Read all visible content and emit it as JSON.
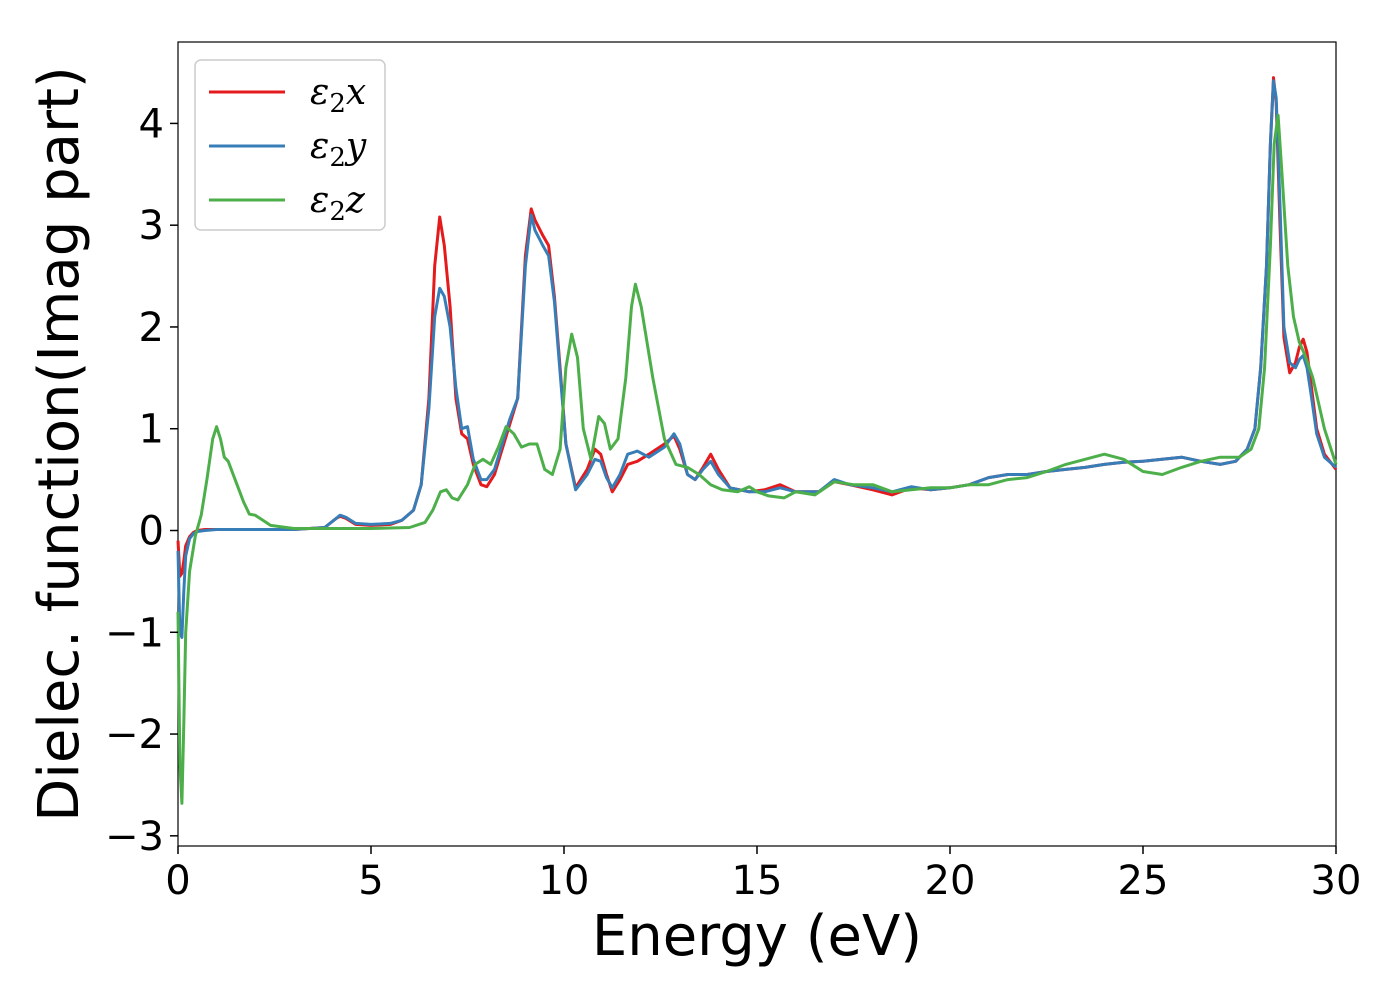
{
  "chart_data": {
    "type": "line",
    "title": "",
    "xlabel": "Energy (eV)",
    "ylabel": "Dielec. function(Imag part)",
    "xlim": [
      0,
      30
    ],
    "ylim": [
      -3.1,
      4.8
    ],
    "xticks": [
      0,
      5,
      10,
      15,
      20,
      25,
      30
    ],
    "xtick_labels": [
      "0",
      "5",
      "10",
      "15",
      "20",
      "25",
      "30"
    ],
    "yticks": [
      -3,
      -2,
      -1,
      0,
      1,
      2,
      3,
      4
    ],
    "ytick_labels": [
      "−3",
      "−2",
      "−1",
      "0",
      "1",
      "2",
      "3",
      "4"
    ],
    "grid": false,
    "legend": {
      "position": "top-left"
    },
    "series": [
      {
        "name": "x",
        "label_base": "ε",
        "label_sub": "2",
        "color": "#e41a1c",
        "x": [
          0,
          0.05,
          0.1,
          0.15,
          0.2,
          0.3,
          0.4,
          0.5,
          0.7,
          1,
          1.5,
          2,
          3,
          3.8,
          4.1,
          4.2,
          4.35,
          4.6,
          5,
          5.5,
          5.8,
          6.1,
          6.3,
          6.5,
          6.65,
          6.78,
          6.9,
          7.05,
          7.2,
          7.35,
          7.5,
          7.65,
          7.85,
          8.0,
          8.2,
          8.4,
          8.6,
          8.8,
          9.0,
          9.15,
          9.25,
          9.45,
          9.6,
          9.75,
          9.9,
          10.05,
          10.3,
          10.6,
          10.8,
          10.95,
          11.1,
          11.25,
          11.45,
          11.65,
          11.9,
          12.2,
          12.6,
          12.85,
          13.0,
          13.2,
          13.4,
          13.6,
          13.8,
          14.0,
          14.3,
          14.8,
          15.2,
          15.6,
          16.0,
          16.6,
          17.0,
          17.4,
          18.0,
          18.5,
          19.0,
          19.5,
          20.0,
          20.5,
          21.0,
          21.5,
          22.0,
          22.5,
          23.0,
          23.5,
          24.0,
          24.5,
          25.0,
          25.5,
          26.0,
          26.5,
          27.0,
          27.4,
          27.7,
          27.9,
          28.05,
          28.2,
          28.3,
          28.38,
          28.45,
          28.55,
          28.65,
          28.8,
          28.95,
          29.05,
          29.15,
          29.25,
          29.35,
          29.5,
          29.7,
          30.0
        ],
        "y": [
          -0.1,
          -0.45,
          -0.42,
          -0.3,
          -0.15,
          -0.06,
          -0.02,
          0.0,
          0.01,
          0.01,
          0.01,
          0.01,
          0.01,
          0.03,
          0.12,
          0.14,
          0.12,
          0.06,
          0.05,
          0.06,
          0.1,
          0.2,
          0.45,
          1.3,
          2.6,
          3.08,
          2.8,
          2.2,
          1.3,
          0.95,
          0.9,
          0.65,
          0.45,
          0.43,
          0.55,
          0.8,
          1.05,
          1.3,
          2.7,
          3.16,
          3.05,
          2.9,
          2.8,
          2.3,
          1.6,
          0.85,
          0.42,
          0.6,
          0.8,
          0.75,
          0.55,
          0.38,
          0.5,
          0.65,
          0.68,
          0.75,
          0.85,
          0.93,
          0.8,
          0.55,
          0.5,
          0.62,
          0.75,
          0.6,
          0.42,
          0.38,
          0.4,
          0.45,
          0.38,
          0.38,
          0.48,
          0.45,
          0.4,
          0.35,
          0.42,
          0.4,
          0.42,
          0.45,
          0.52,
          0.55,
          0.55,
          0.58,
          0.6,
          0.62,
          0.65,
          0.67,
          0.68,
          0.7,
          0.72,
          0.68,
          0.65,
          0.68,
          0.8,
          1.0,
          1.6,
          2.6,
          3.8,
          4.45,
          4.2,
          3.0,
          1.9,
          1.55,
          1.65,
          1.8,
          1.88,
          1.75,
          1.45,
          1.0,
          0.75,
          0.6
        ]
      },
      {
        "name": "y",
        "label_base": "ε",
        "label_sub": "2",
        "color": "#377eb8",
        "x": [
          0,
          0.05,
          0.1,
          0.15,
          0.2,
          0.3,
          0.4,
          0.5,
          0.7,
          1,
          1.5,
          2,
          3,
          3.8,
          4.1,
          4.2,
          4.35,
          4.6,
          5,
          5.5,
          5.8,
          6.1,
          6.3,
          6.5,
          6.65,
          6.78,
          6.9,
          7.05,
          7.2,
          7.35,
          7.5,
          7.65,
          7.85,
          8.0,
          8.2,
          8.4,
          8.6,
          8.8,
          9.0,
          9.15,
          9.25,
          9.45,
          9.6,
          9.75,
          9.9,
          10.05,
          10.3,
          10.6,
          10.8,
          10.95,
          11.1,
          11.25,
          11.45,
          11.65,
          11.9,
          12.2,
          12.6,
          12.85,
          13.0,
          13.2,
          13.4,
          13.6,
          13.8,
          14.0,
          14.3,
          14.8,
          15.2,
          15.6,
          16.0,
          16.6,
          17.0,
          17.4,
          18.0,
          18.5,
          19.0,
          19.5,
          20.0,
          20.5,
          21.0,
          21.5,
          22.0,
          22.5,
          23.0,
          23.5,
          24.0,
          24.5,
          25.0,
          25.5,
          26.0,
          26.5,
          27.0,
          27.4,
          27.7,
          27.9,
          28.05,
          28.2,
          28.3,
          28.38,
          28.45,
          28.55,
          28.65,
          28.8,
          28.95,
          29.05,
          29.15,
          29.25,
          29.35,
          29.5,
          29.7,
          30.0
        ],
        "y": [
          -0.2,
          -1.0,
          -1.05,
          -0.6,
          -0.25,
          -0.08,
          -0.03,
          -0.01,
          0.0,
          0.01,
          0.01,
          0.01,
          0.01,
          0.03,
          0.12,
          0.15,
          0.13,
          0.07,
          0.06,
          0.07,
          0.1,
          0.2,
          0.45,
          1.2,
          2.1,
          2.38,
          2.3,
          2.0,
          1.4,
          1.0,
          1.02,
          0.7,
          0.5,
          0.5,
          0.6,
          0.85,
          1.1,
          1.3,
          2.6,
          3.1,
          2.95,
          2.8,
          2.7,
          2.25,
          1.55,
          0.85,
          0.4,
          0.55,
          0.7,
          0.68,
          0.52,
          0.42,
          0.55,
          0.75,
          0.78,
          0.72,
          0.82,
          0.95,
          0.85,
          0.55,
          0.5,
          0.6,
          0.68,
          0.55,
          0.42,
          0.38,
          0.38,
          0.42,
          0.38,
          0.38,
          0.5,
          0.45,
          0.42,
          0.38,
          0.43,
          0.4,
          0.42,
          0.45,
          0.52,
          0.55,
          0.55,
          0.58,
          0.6,
          0.62,
          0.65,
          0.67,
          0.68,
          0.7,
          0.72,
          0.68,
          0.65,
          0.68,
          0.8,
          1.0,
          1.6,
          2.6,
          3.8,
          4.42,
          4.25,
          3.2,
          2.0,
          1.65,
          1.6,
          1.68,
          1.72,
          1.6,
          1.35,
          0.95,
          0.72,
          0.62
        ]
      },
      {
        "name": "z",
        "label_base": "ε",
        "label_sub": "2",
        "color": "#4daf4a",
        "x": [
          0,
          0.05,
          0.1,
          0.15,
          0.2,
          0.3,
          0.45,
          0.6,
          0.75,
          0.9,
          1.0,
          1.1,
          1.2,
          1.3,
          1.5,
          1.7,
          1.85,
          2.0,
          2.2,
          2.4,
          3.0,
          4.0,
          5.0,
          6.0,
          6.4,
          6.6,
          6.8,
          6.95,
          7.1,
          7.25,
          7.5,
          7.7,
          7.9,
          8.1,
          8.3,
          8.5,
          8.7,
          8.9,
          9.1,
          9.3,
          9.5,
          9.7,
          9.9,
          10.05,
          10.2,
          10.35,
          10.5,
          10.7,
          10.9,
          11.05,
          11.2,
          11.4,
          11.6,
          11.75,
          11.85,
          12.0,
          12.3,
          12.6,
          12.9,
          13.2,
          13.5,
          13.8,
          14.1,
          14.5,
          14.8,
          15.0,
          15.3,
          15.7,
          16.0,
          16.5,
          17.0,
          17.5,
          18.0,
          18.5,
          19.0,
          19.5,
          20.0,
          20.5,
          21.0,
          21.5,
          22.0,
          22.5,
          23.0,
          23.5,
          24.0,
          24.5,
          25.0,
          25.5,
          26.0,
          26.5,
          27.0,
          27.5,
          27.8,
          28.0,
          28.15,
          28.3,
          28.4,
          28.5,
          28.6,
          28.75,
          28.9,
          29.05,
          29.2,
          29.4,
          29.7,
          30.0
        ],
        "y": [
          -0.8,
          -2.3,
          -2.68,
          -1.9,
          -1.0,
          -0.4,
          -0.05,
          0.15,
          0.5,
          0.9,
          1.02,
          0.9,
          0.72,
          0.68,
          0.48,
          0.28,
          0.16,
          0.15,
          0.1,
          0.05,
          0.02,
          0.02,
          0.02,
          0.03,
          0.08,
          0.2,
          0.38,
          0.4,
          0.32,
          0.3,
          0.45,
          0.65,
          0.7,
          0.65,
          0.82,
          1.02,
          0.95,
          0.82,
          0.85,
          0.85,
          0.6,
          0.55,
          0.8,
          1.6,
          1.93,
          1.7,
          1.0,
          0.7,
          1.12,
          1.05,
          0.8,
          0.9,
          1.5,
          2.2,
          2.42,
          2.2,
          1.5,
          0.9,
          0.65,
          0.62,
          0.55,
          0.45,
          0.4,
          0.38,
          0.43,
          0.38,
          0.34,
          0.32,
          0.38,
          0.35,
          0.48,
          0.45,
          0.45,
          0.38,
          0.4,
          0.42,
          0.42,
          0.45,
          0.45,
          0.5,
          0.52,
          0.58,
          0.65,
          0.7,
          0.75,
          0.7,
          0.58,
          0.55,
          0.62,
          0.68,
          0.72,
          0.72,
          0.8,
          1.0,
          1.6,
          2.8,
          3.8,
          4.08,
          3.5,
          2.6,
          2.1,
          1.85,
          1.72,
          1.5,
          1.0,
          0.65
        ]
      }
    ]
  }
}
